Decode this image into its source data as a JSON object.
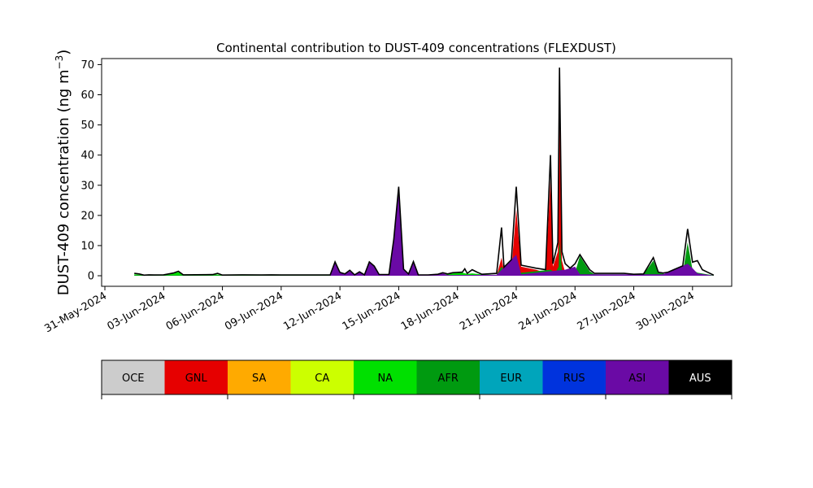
{
  "chart_data": {
    "type": "area",
    "title": "Continental contribution to DUST-409 concentrations (FLEXDUST)",
    "ylabel_main": "DUST-409 concentration (ng m",
    "ylabel_exp": "−3",
    "ylabel_close": ")",
    "xlabel": "",
    "ylim": [
      -3.5,
      72
    ],
    "yticks": [
      0,
      10,
      20,
      30,
      40,
      50,
      60,
      70
    ],
    "xlim": [
      "2024-05-30T20:00",
      "2024-07-02T00:00"
    ],
    "xticks": [
      "2024-05-31",
      "2024-06-03",
      "2024-06-06",
      "2024-06-09",
      "2024-06-12",
      "2024-06-15",
      "2024-06-18",
      "2024-06-21",
      "2024-06-24",
      "2024-06-27",
      "2024-06-30"
    ],
    "xtick_labels": [
      "31-May-2024",
      "03-Jun-2024",
      "06-Jun-2024",
      "09-Jun-2024",
      "12-Jun-2024",
      "15-Jun-2024",
      "18-Jun-2024",
      "21-Jun-2024",
      "24-Jun-2024",
      "27-Jun-2024",
      "30-Jun-2024"
    ],
    "legend": [
      {
        "name": "OCE",
        "color": "#cccccc",
        "text_color": "#000000"
      },
      {
        "name": "GNL",
        "color": "#e60000",
        "text_color": "#000000"
      },
      {
        "name": "SA",
        "color": "#ffaa00",
        "text_color": "#000000"
      },
      {
        "name": "CA",
        "color": "#ccff00",
        "text_color": "#000000"
      },
      {
        "name": "NA",
        "color": "#00e000",
        "text_color": "#000000"
      },
      {
        "name": "AFR",
        "color": "#009a10",
        "text_color": "#000000"
      },
      {
        "name": "EUR",
        "color": "#00a5bb",
        "text_color": "#000000"
      },
      {
        "name": "RUS",
        "color": "#0033dd",
        "text_color": "#000000"
      },
      {
        "name": "ASI",
        "color": "#6a0aa5",
        "text_color": "#000000"
      },
      {
        "name": "AUS",
        "color": "#000000",
        "text_color": "#ffffff"
      }
    ],
    "series_order": [
      "GNL",
      "NA",
      "AFR",
      "ASI"
    ],
    "series": [
      {
        "name": "GNL",
        "points": [
          [
            "2024-06-01T12:00",
            0
          ],
          [
            "2024-06-20T00:00",
            0
          ],
          [
            "2024-06-20T06:00",
            6
          ],
          [
            "2024-06-20T09:00",
            1.5
          ],
          [
            "2024-06-20T18:00",
            2
          ],
          [
            "2024-06-21T00:00",
            22
          ],
          [
            "2024-06-21T06:00",
            3
          ],
          [
            "2024-06-22T00:00",
            2
          ],
          [
            "2024-06-22T12:00",
            1
          ],
          [
            "2024-06-22T18:00",
            32
          ],
          [
            "2024-06-22T21:00",
            3
          ],
          [
            "2024-06-23T03:00",
            8
          ],
          [
            "2024-06-23T05:00",
            55
          ],
          [
            "2024-06-23T08:00",
            5
          ],
          [
            "2024-06-23T12:00",
            1
          ],
          [
            "2024-06-23T18:00",
            0.5
          ],
          [
            "2024-06-24T00:00",
            0
          ],
          [
            "2024-07-01T02:00",
            0
          ]
        ]
      },
      {
        "name": "NA",
        "points": [
          [
            "2024-06-01T12:00",
            0.5
          ],
          [
            "2024-06-02T00:00",
            0.2
          ],
          [
            "2024-06-03T00:00",
            0.3
          ],
          [
            "2024-06-03T18:00",
            1.2
          ],
          [
            "2024-06-04T00:00",
            0.3
          ],
          [
            "2024-06-05T18:00",
            0.4
          ],
          [
            "2024-06-06T00:00",
            0.1
          ],
          [
            "2024-06-17T00:00",
            0.2
          ],
          [
            "2024-06-17T18:00",
            0.8
          ],
          [
            "2024-06-18T06:00",
            1.0
          ],
          [
            "2024-06-18T12:00",
            0.6
          ],
          [
            "2024-06-18T18:00",
            0.8
          ],
          [
            "2024-06-19T06:00",
            0.4
          ],
          [
            "2024-06-20T00:00",
            0.2
          ],
          [
            "2024-06-24T00:00",
            0.2
          ],
          [
            "2024-06-25T00:00",
            0.5
          ],
          [
            "2024-06-26T12:00",
            0.5
          ],
          [
            "2024-06-27T00:00",
            0.2
          ],
          [
            "2024-07-01T02:00",
            0
          ]
        ]
      },
      {
        "name": "AFR",
        "points": [
          [
            "2024-06-01T12:00",
            0.2
          ],
          [
            "2024-06-20T00:00",
            0.3
          ],
          [
            "2024-06-20T06:00",
            3
          ],
          [
            "2024-06-20T12:00",
            0.5
          ],
          [
            "2024-06-22T18:00",
            2
          ],
          [
            "2024-06-23T00:00",
            1
          ],
          [
            "2024-06-23T04:00",
            3
          ],
          [
            "2024-06-23T05:00",
            12
          ],
          [
            "2024-06-23T08:00",
            2
          ],
          [
            "2024-06-23T12:00",
            1.5
          ],
          [
            "2024-06-24T00:00",
            1
          ],
          [
            "2024-06-24T06:00",
            6.5
          ],
          [
            "2024-06-24T18:00",
            1.5
          ],
          [
            "2024-06-25T00:00",
            0.5
          ],
          [
            "2024-06-26T00:00",
            0.3
          ],
          [
            "2024-06-27T00:00",
            0.3
          ],
          [
            "2024-06-27T12:00",
            0.5
          ],
          [
            "2024-06-28T00:00",
            5
          ],
          [
            "2024-06-28T06:00",
            1
          ],
          [
            "2024-06-28T18:00",
            0.3
          ],
          [
            "2024-06-29T12:00",
            0.8
          ],
          [
            "2024-06-29T18:00",
            11
          ],
          [
            "2024-06-30T00:00",
            2
          ],
          [
            "2024-06-30T06:00",
            1
          ],
          [
            "2024-07-01T02:00",
            0.1
          ]
        ]
      },
      {
        "name": "ASI",
        "points": [
          [
            "2024-06-01T12:00",
            0
          ],
          [
            "2024-06-11T12:00",
            0
          ],
          [
            "2024-06-11T18:00",
            4.5
          ],
          [
            "2024-06-12T00:00",
            1
          ],
          [
            "2024-06-12T06:00",
            0.5
          ],
          [
            "2024-06-12T12:00",
            1.5
          ],
          [
            "2024-06-12T18:00",
            0.2
          ],
          [
            "2024-06-13T00:00",
            1.2
          ],
          [
            "2024-06-13T06:00",
            0.2
          ],
          [
            "2024-06-13T12:00",
            4.5
          ],
          [
            "2024-06-13T18:00",
            3
          ],
          [
            "2024-06-14T00:00",
            0.3
          ],
          [
            "2024-06-14T12:00",
            0.3
          ],
          [
            "2024-06-14T18:00",
            12
          ],
          [
            "2024-06-15T00:00",
            29.5
          ],
          [
            "2024-06-15T06:00",
            2
          ],
          [
            "2024-06-15T12:00",
            0.5
          ],
          [
            "2024-06-15T18:00",
            4.5
          ],
          [
            "2024-06-16T00:00",
            0.2
          ],
          [
            "2024-06-17T00:00",
            0.3
          ],
          [
            "2024-06-17T06:00",
            0.8
          ],
          [
            "2024-06-17T12:00",
            0.2
          ],
          [
            "2024-06-20T00:00",
            0.3
          ],
          [
            "2024-06-21T00:00",
            7
          ],
          [
            "2024-06-21T06:00",
            0.5
          ],
          [
            "2024-06-23T12:00",
            2
          ],
          [
            "2024-06-24T00:00",
            3
          ],
          [
            "2024-06-24T06:00",
            0.5
          ],
          [
            "2024-06-28T12:00",
            0.5
          ],
          [
            "2024-06-29T18:00",
            4
          ],
          [
            "2024-06-30T00:00",
            2.5
          ],
          [
            "2024-06-30T06:00",
            0.8
          ],
          [
            "2024-07-01T02:00",
            0
          ]
        ]
      }
    ],
    "total": [
      [
        "2024-06-01T12:00",
        0.8
      ],
      [
        "2024-06-01T18:00",
        0.6
      ],
      [
        "2024-06-02T00:00",
        0.1
      ],
      [
        "2024-06-02T06:00",
        0.3
      ],
      [
        "2024-06-02T12:00",
        0.1
      ],
      [
        "2024-06-03T00:00",
        0.2
      ],
      [
        "2024-06-03T12:00",
        0.8
      ],
      [
        "2024-06-03T18:00",
        1.5
      ],
      [
        "2024-06-04T00:00",
        0.2
      ],
      [
        "2024-06-05T12:00",
        0.2
      ],
      [
        "2024-06-05T18:00",
        0.8
      ],
      [
        "2024-06-06T00:00",
        0.1
      ],
      [
        "2024-06-07T00:00",
        0.3
      ],
      [
        "2024-06-08T00:00",
        0.2
      ],
      [
        "2024-06-08T12:00",
        0.3
      ],
      [
        "2024-06-09T00:00",
        0.2
      ],
      [
        "2024-06-11T12:00",
        0.2
      ],
      [
        "2024-06-11T18:00",
        4.6
      ],
      [
        "2024-06-12T00:00",
        1.1
      ],
      [
        "2024-06-12T06:00",
        0.6
      ],
      [
        "2024-06-12T12:00",
        1.8
      ],
      [
        "2024-06-12T18:00",
        0.3
      ],
      [
        "2024-06-13T00:00",
        1.3
      ],
      [
        "2024-06-13T06:00",
        0.3
      ],
      [
        "2024-06-13T12:00",
        4.6
      ],
      [
        "2024-06-13T18:00",
        3.2
      ],
      [
        "2024-06-14T00:00",
        0.4
      ],
      [
        "2024-06-14T12:00",
        0.4
      ],
      [
        "2024-06-14T18:00",
        12.2
      ],
      [
        "2024-06-15T00:00",
        29.5
      ],
      [
        "2024-06-15T06:00",
        2.2
      ],
      [
        "2024-06-15T12:00",
        0.6
      ],
      [
        "2024-06-15T18:00",
        4.7
      ],
      [
        "2024-06-16T00:00",
        0.3
      ],
      [
        "2024-06-16T12:00",
        0.2
      ],
      [
        "2024-06-17T00:00",
        0.5
      ],
      [
        "2024-06-17T06:00",
        1.0
      ],
      [
        "2024-06-17T12:00",
        0.3
      ],
      [
        "2024-06-17T18:00",
        1.0
      ],
      [
        "2024-06-18T06:00",
        1.2
      ],
      [
        "2024-06-18T09:00",
        2.3
      ],
      [
        "2024-06-18T12:00",
        0.8
      ],
      [
        "2024-06-18T18:00",
        2.0
      ],
      [
        "2024-06-19T00:00",
        1.2
      ],
      [
        "2024-06-19T06:00",
        0.5
      ],
      [
        "2024-06-20T00:00",
        0.8
      ],
      [
        "2024-06-20T06:00",
        16
      ],
      [
        "2024-06-20T09:00",
        2
      ],
      [
        "2024-06-20T18:00",
        3.5
      ],
      [
        "2024-06-21T00:00",
        29.5
      ],
      [
        "2024-06-21T06:00",
        3.5
      ],
      [
        "2024-06-22T00:00",
        2.5
      ],
      [
        "2024-06-22T12:00",
        2
      ],
      [
        "2024-06-22T18:00",
        40
      ],
      [
        "2024-06-22T21:00",
        4
      ],
      [
        "2024-06-23T03:00",
        11
      ],
      [
        "2024-06-23T05:00",
        69
      ],
      [
        "2024-06-23T08:00",
        8
      ],
      [
        "2024-06-23T12:00",
        4
      ],
      [
        "2024-06-23T18:00",
        2.5
      ],
      [
        "2024-06-24T00:00",
        4
      ],
      [
        "2024-06-24T06:00",
        7
      ],
      [
        "2024-06-24T18:00",
        2
      ],
      [
        "2024-06-25T00:00",
        0.8
      ],
      [
        "2024-06-26T00:00",
        0.8
      ],
      [
        "2024-06-26T12:00",
        0.8
      ],
      [
        "2024-06-27T00:00",
        0.5
      ],
      [
        "2024-06-27T12:00",
        0.6
      ],
      [
        "2024-06-28T00:00",
        6
      ],
      [
        "2024-06-28T06:00",
        1.2
      ],
      [
        "2024-06-28T18:00",
        0.6
      ],
      [
        "2024-06-29T00:00",
        0.8
      ],
      [
        "2024-06-29T12:00",
        1.5
      ],
      [
        "2024-06-29T18:00",
        15.5
      ],
      [
        "2024-06-30T00:00",
        4.5
      ],
      [
        "2024-06-30T06:00",
        5
      ],
      [
        "2024-06-30T12:00",
        2
      ],
      [
        "2024-07-01T02:00",
        0.2
      ]
    ]
  }
}
